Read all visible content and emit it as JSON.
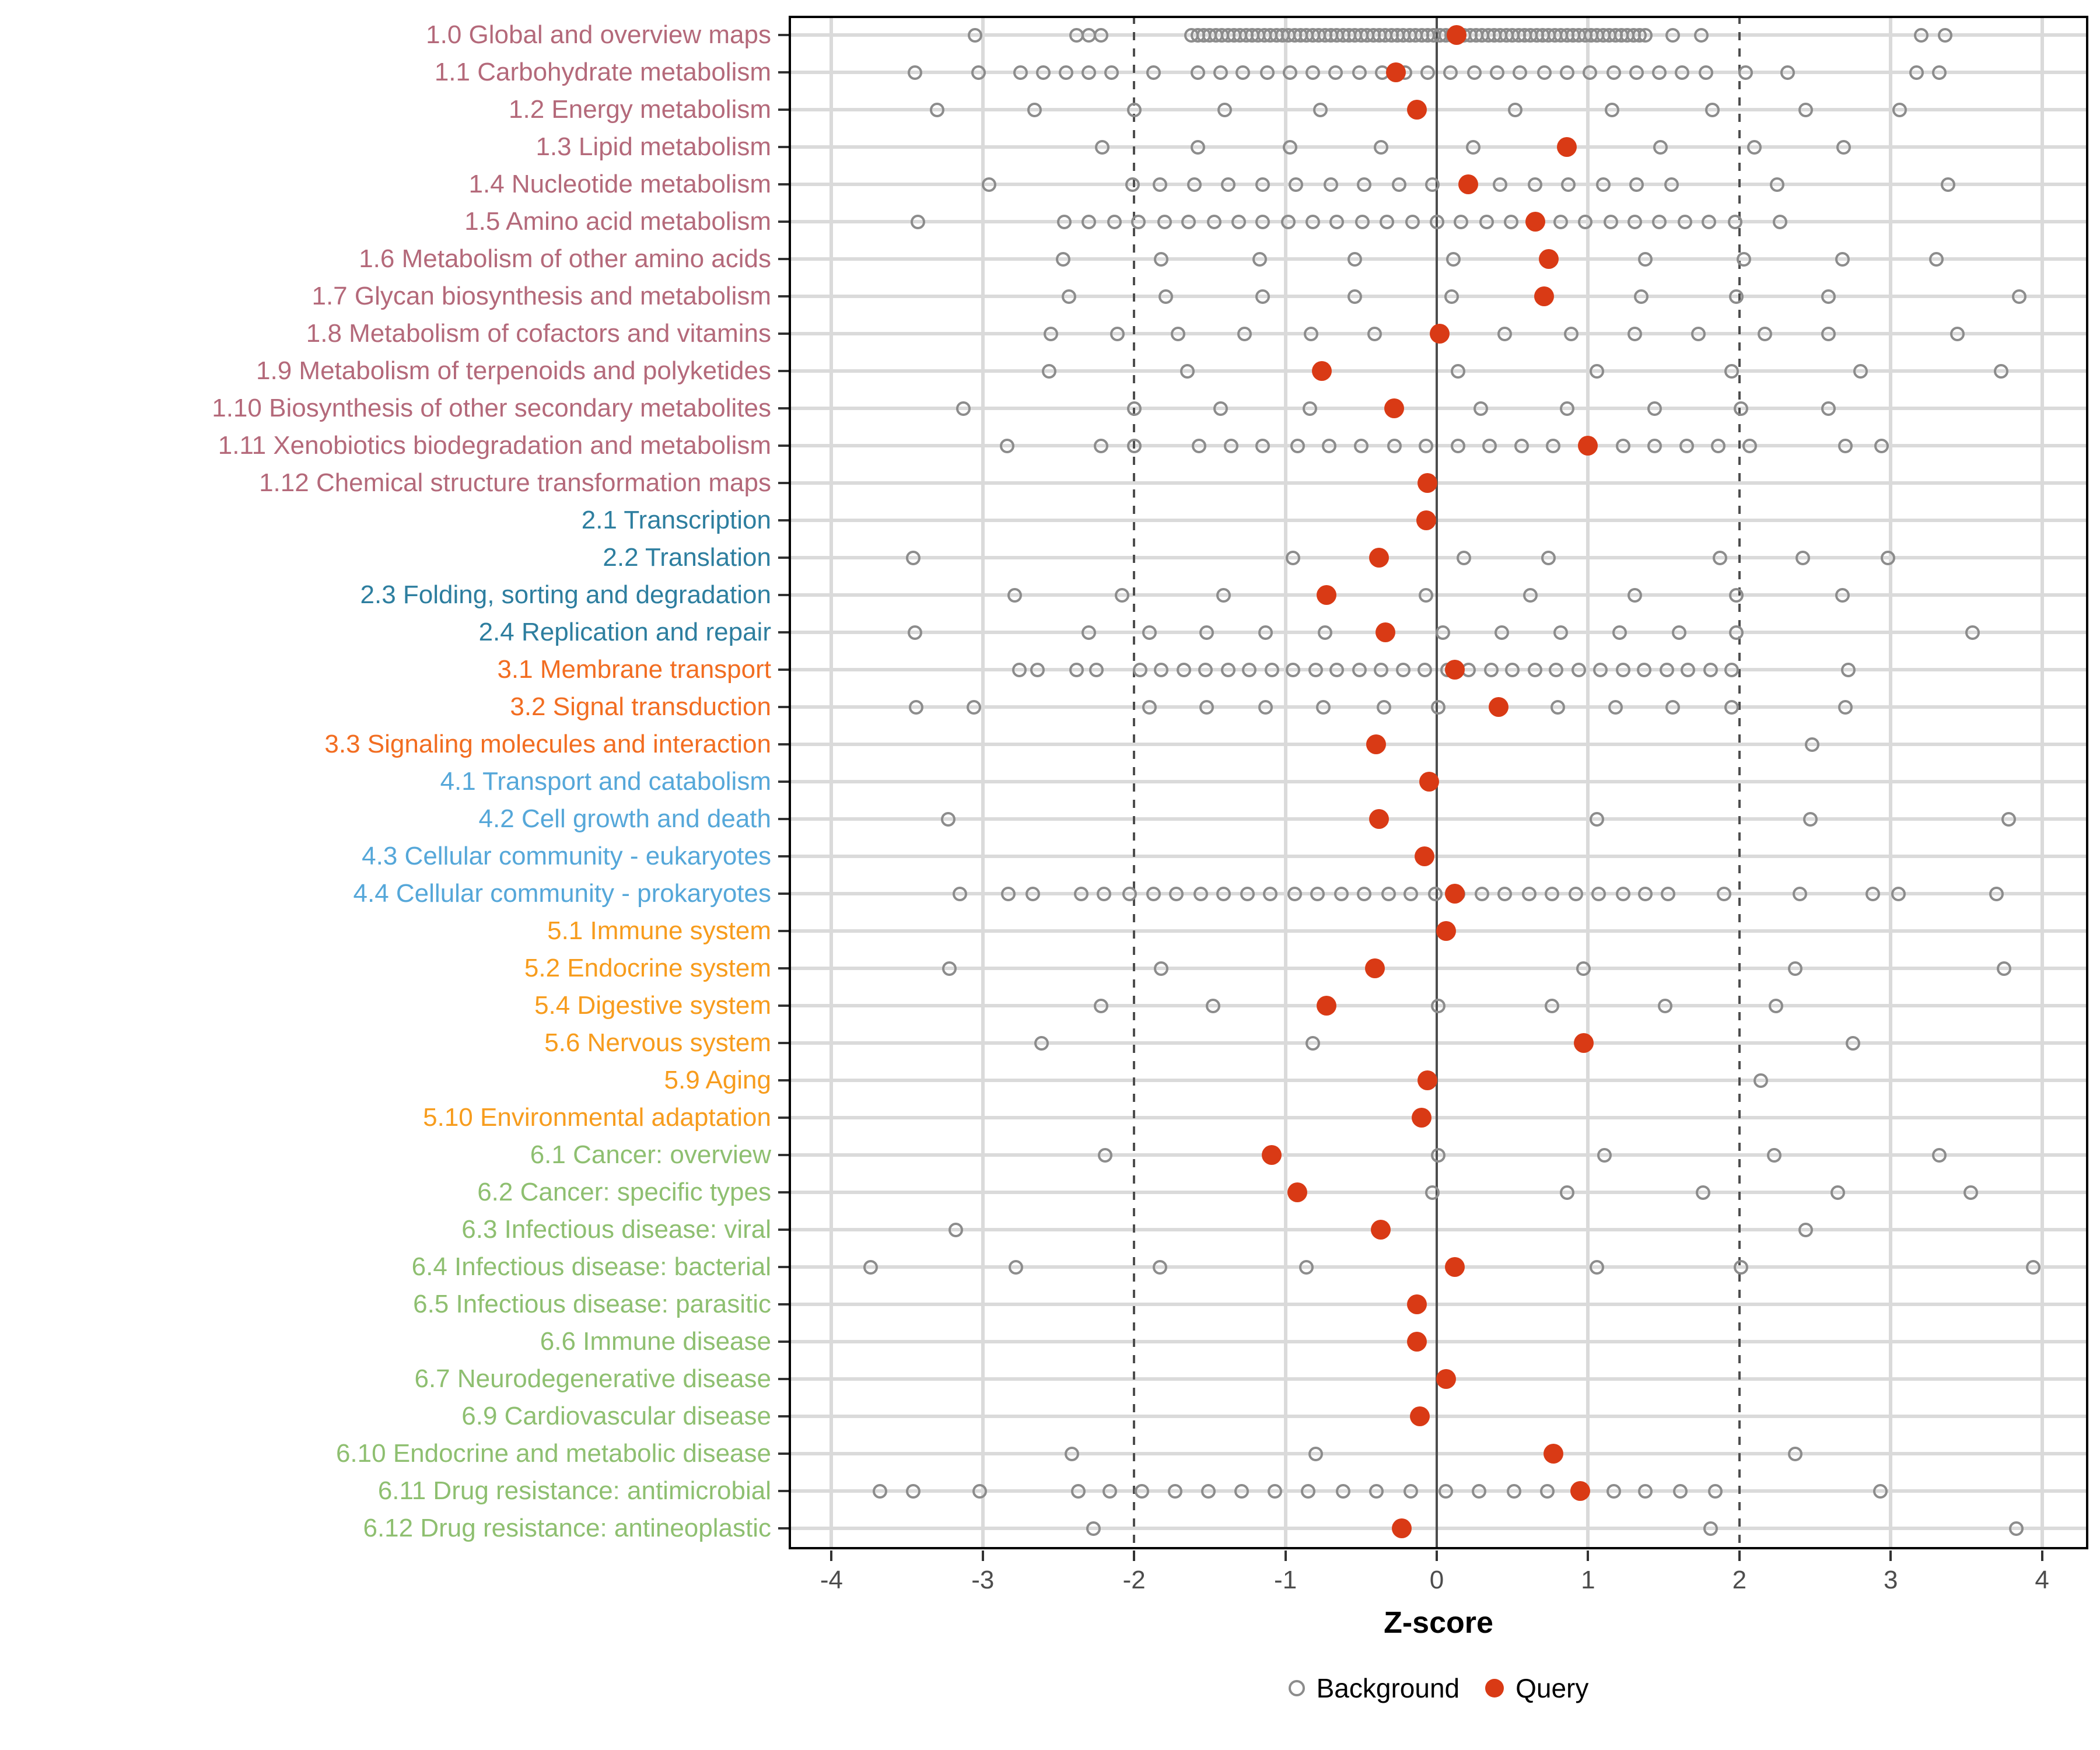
{
  "chart_data": {
    "type": "scatter",
    "title": "",
    "xlabel": "Z-score",
    "ylabel": "",
    "x_ticks": [
      -4,
      -3,
      -2,
      -1,
      0,
      1,
      2,
      3,
      4
    ],
    "x_range": [
      -4.28,
      4.31
    ],
    "grid": "on",
    "legend_position": "bottom",
    "reference_lines": {
      "solid_at": 0,
      "dashed_at": [
        -2,
        2
      ]
    },
    "legend": [
      {
        "label": "Background",
        "marker": "open-circle",
        "color": "#8c8c8c"
      },
      {
        "label": "Query",
        "marker": "filled-circle",
        "color": "#d93a15"
      }
    ],
    "colors": {
      "query": "#d93a15",
      "background_stroke": "#8c8c8c",
      "grid_light": "#dadada",
      "reference": "#4d4d4d",
      "tick": "#333333",
      "axis_text": "#4d4d4d",
      "group_metabolism": "#b4697a",
      "group_genetic": "#2d7e9f",
      "group_env_info": "#f26d21",
      "group_cellular": "#55a7d9",
      "group_organismal": "#f79c1d",
      "group_disease": "#8ebf70"
    },
    "rows": [
      {
        "label": "1.0 Global and overview maps",
        "group": "metabolism",
        "query": 0.13,
        "background": [
          -3.05,
          -2.38,
          -2.3,
          -2.22,
          -1.62,
          -1.58,
          -1.54,
          -1.5,
          -1.46,
          -1.42,
          -1.38,
          -1.34,
          -1.3,
          -1.26,
          -1.22,
          -1.18,
          -1.14,
          -1.1,
          -1.06,
          -1.02,
          -0.98,
          -0.94,
          -0.9,
          -0.86,
          -0.82,
          -0.78,
          -0.74,
          -0.7,
          -0.66,
          -0.62,
          -0.58,
          -0.54,
          -0.5,
          -0.46,
          -0.42,
          -0.38,
          -0.34,
          -0.3,
          -0.26,
          -0.22,
          -0.18,
          -0.14,
          -0.1,
          -0.06,
          -0.02,
          0.02,
          0.06,
          0.1,
          0.14,
          0.18,
          0.22,
          0.26,
          0.3,
          0.34,
          0.38,
          0.42,
          0.46,
          0.5,
          0.54,
          0.58,
          0.62,
          0.66,
          0.7,
          0.74,
          0.78,
          0.82,
          0.86,
          0.9,
          0.94,
          0.98,
          1.02,
          1.06,
          1.1,
          1.14,
          1.18,
          1.22,
          1.26,
          1.3,
          1.34,
          1.38,
          1.56,
          1.75,
          3.2,
          3.36
        ]
      },
      {
        "label": "1.1 Carbohydrate metabolism",
        "group": "metabolism",
        "query": -0.27,
        "background": [
          -3.45,
          -3.03,
          -2.75,
          -2.6,
          -2.45,
          -2.3,
          -2.15,
          -1.87,
          -1.58,
          -1.43,
          -1.28,
          -1.12,
          -0.97,
          -0.82,
          -0.67,
          -0.51,
          -0.36,
          -0.21,
          -0.06,
          0.09,
          0.25,
          0.4,
          0.55,
          0.71,
          0.86,
          1.01,
          1.17,
          1.32,
          1.47,
          1.62,
          1.78,
          2.04,
          2.32,
          3.17,
          3.32
        ]
      },
      {
        "label": "1.2 Energy metabolism",
        "group": "metabolism",
        "query": -0.13,
        "background": [
          -3.3,
          -2.66,
          -2.0,
          -1.4,
          -0.77,
          0.52,
          1.16,
          1.82,
          2.44,
          3.06
        ]
      },
      {
        "label": "1.3 Lipid metabolism",
        "group": "metabolism",
        "query": 0.86,
        "background": [
          -2.21,
          -1.58,
          -0.97,
          -0.37,
          0.24,
          1.48,
          2.1,
          2.69
        ]
      },
      {
        "label": "1.4 Nucleotide metabolism",
        "group": "metabolism",
        "query": 0.21,
        "background": [
          -2.96,
          -2.01,
          -1.83,
          -1.6,
          -1.38,
          -1.15,
          -0.93,
          -0.7,
          -0.48,
          -0.25,
          -0.03,
          0.42,
          0.65,
          0.87,
          1.1,
          1.32,
          1.55,
          2.25,
          3.38
        ]
      },
      {
        "label": "1.5 Amino acid metabolism",
        "group": "metabolism",
        "query": 0.65,
        "background": [
          -3.43,
          -2.46,
          -2.3,
          -2.13,
          -1.97,
          -1.8,
          -1.64,
          -1.47,
          -1.31,
          -1.15,
          -0.98,
          -0.82,
          -0.66,
          -0.49,
          -0.33,
          -0.16,
          0.0,
          0.16,
          0.33,
          0.49,
          0.66,
          0.82,
          0.98,
          1.15,
          1.31,
          1.47,
          1.64,
          1.8,
          1.97,
          2.27
        ]
      },
      {
        "label": "1.6 Metabolism of other amino acids",
        "group": "metabolism",
        "query": 0.74,
        "background": [
          -2.47,
          -1.82,
          -1.17,
          -0.54,
          0.11,
          1.38,
          2.03,
          2.68,
          3.3
        ]
      },
      {
        "label": "1.7 Glycan biosynthesis and metabolism",
        "group": "metabolism",
        "query": 0.71,
        "background": [
          -2.43,
          -1.79,
          -1.15,
          -0.54,
          0.1,
          1.35,
          1.98,
          2.59,
          3.85
        ]
      },
      {
        "label": "1.8 Metabolism of cofactors and vitamins",
        "group": "metabolism",
        "query": 0.02,
        "background": [
          -2.55,
          -2.11,
          -1.71,
          -1.27,
          -0.83,
          -0.41,
          0.45,
          0.89,
          1.31,
          1.73,
          2.17,
          2.59,
          3.44
        ]
      },
      {
        "label": "1.9 Metabolism of terpenoids and polyketides",
        "group": "metabolism",
        "query": -0.76,
        "background": [
          -2.56,
          -1.65,
          0.14,
          1.06,
          1.95,
          2.8,
          3.73
        ]
      },
      {
        "label": "1.10 Biosynthesis of other secondary metabolites",
        "group": "metabolism",
        "query": -0.28,
        "background": [
          -3.13,
          -2.0,
          -1.43,
          -0.84,
          0.29,
          0.86,
          1.44,
          2.01,
          2.59
        ]
      },
      {
        "label": "1.11 Xenobiotics biodegradation and metabolism",
        "group": "metabolism",
        "query": 1.0,
        "background": [
          -2.84,
          -2.22,
          -2.0,
          -1.57,
          -1.36,
          -1.15,
          -0.92,
          -0.71,
          -0.5,
          -0.28,
          -0.07,
          0.14,
          0.35,
          0.56,
          0.77,
          1.23,
          1.44,
          1.65,
          1.86,
          2.07,
          2.7,
          2.94
        ]
      },
      {
        "label": "1.12 Chemical structure transformation maps",
        "group": "metabolism",
        "query": -0.06,
        "background": []
      },
      {
        "label": "2.1 Transcription",
        "group": "genetic",
        "query": -0.07,
        "background": []
      },
      {
        "label": "2.2 Translation",
        "group": "genetic",
        "query": -0.38,
        "background": [
          -3.46,
          -0.95,
          0.18,
          0.74,
          1.87,
          2.42,
          2.98
        ]
      },
      {
        "label": "2.3 Folding, sorting and degradation",
        "group": "genetic",
        "query": -0.73,
        "background": [
          -2.79,
          -2.08,
          -1.41,
          -0.07,
          0.62,
          1.31,
          1.98,
          2.68
        ]
      },
      {
        "label": "2.4 Replication and repair",
        "group": "genetic",
        "query": -0.34,
        "background": [
          -3.45,
          -2.3,
          -1.9,
          -1.52,
          -1.13,
          -0.74,
          0.04,
          0.43,
          0.82,
          1.21,
          1.6,
          1.98,
          3.54
        ]
      },
      {
        "label": "3.1 Membrane transport",
        "group": "env_info",
        "query": 0.12,
        "background": [
          -2.76,
          -2.64,
          -2.38,
          -2.25,
          -1.96,
          -1.82,
          -1.67,
          -1.53,
          -1.38,
          -1.24,
          -1.09,
          -0.95,
          -0.8,
          -0.66,
          -0.51,
          -0.37,
          -0.22,
          -0.08,
          0.07,
          0.21,
          0.36,
          0.5,
          0.65,
          0.79,
          0.94,
          1.08,
          1.23,
          1.37,
          1.52,
          1.66,
          1.81,
          1.95,
          2.72
        ]
      },
      {
        "label": "3.2 Signal transduction",
        "group": "env_info",
        "query": 0.41,
        "background": [
          -3.44,
          -3.06,
          -1.9,
          -1.52,
          -1.13,
          -0.75,
          -0.35,
          0.01,
          0.8,
          1.18,
          1.56,
          1.95,
          2.7
        ]
      },
      {
        "label": "3.3 Signaling molecules and interaction",
        "group": "env_info",
        "query": -0.4,
        "background": [
          2.48
        ]
      },
      {
        "label": "4.1 Transport and catabolism",
        "group": "cellular",
        "query": -0.05,
        "background": []
      },
      {
        "label": "4.2 Cell growth and death",
        "group": "cellular",
        "query": -0.38,
        "background": [
          -3.23,
          1.06,
          2.47,
          3.78
        ]
      },
      {
        "label": "4.3 Cellular community - eukaryotes",
        "group": "cellular",
        "query": -0.08,
        "background": []
      },
      {
        "label": "4.4 Cellular community - prokaryotes",
        "group": "cellular",
        "query": 0.12,
        "background": [
          -3.15,
          -2.83,
          -2.67,
          -2.35,
          -2.2,
          -2.03,
          -1.87,
          -1.72,
          -1.56,
          -1.41,
          -1.25,
          -1.1,
          -0.94,
          -0.79,
          -0.63,
          -0.48,
          -0.32,
          -0.17,
          -0.01,
          0.14,
          0.3,
          0.45,
          0.61,
          0.76,
          0.92,
          1.07,
          1.23,
          1.38,
          1.53,
          1.9,
          2.4,
          2.88,
          3.05,
          3.7
        ]
      },
      {
        "label": "5.1 Immune system",
        "group": "organismal",
        "query": 0.06,
        "background": []
      },
      {
        "label": "5.2 Endocrine system",
        "group": "organismal",
        "query": -0.41,
        "background": [
          -3.22,
          -1.82,
          0.97,
          2.37,
          3.75
        ]
      },
      {
        "label": "5.4 Digestive system",
        "group": "organismal",
        "query": -0.73,
        "background": [
          -2.22,
          -1.48,
          0.01,
          0.76,
          1.51,
          2.24
        ]
      },
      {
        "label": "5.6 Nervous system",
        "group": "organismal",
        "query": 0.97,
        "background": [
          -2.61,
          -0.82,
          2.75
        ]
      },
      {
        "label": "5.9 Aging",
        "group": "organismal",
        "query": -0.06,
        "background": [
          2.14
        ]
      },
      {
        "label": "5.10 Environmental adaptation",
        "group": "organismal",
        "query": -0.1,
        "background": []
      },
      {
        "label": "6.1 Cancer: overview",
        "group": "disease",
        "query": -1.09,
        "background": [
          -2.19,
          0.01,
          1.11,
          2.23,
          3.32
        ]
      },
      {
        "label": "6.2 Cancer: specific types",
        "group": "disease",
        "query": -0.92,
        "background": [
          -0.03,
          0.86,
          1.76,
          2.65,
          3.53
        ]
      },
      {
        "label": "6.3 Infectious disease: viral",
        "group": "disease",
        "query": -0.37,
        "background": [
          -3.18,
          2.44
        ]
      },
      {
        "label": "6.4 Infectious disease: bacterial",
        "group": "disease",
        "query": 0.12,
        "background": [
          -3.74,
          -2.78,
          -1.83,
          -0.86,
          1.06,
          2.01,
          3.94
        ]
      },
      {
        "label": "6.5 Infectious disease: parasitic",
        "group": "disease",
        "query": -0.13,
        "background": []
      },
      {
        "label": "6.6 Immune disease",
        "group": "disease",
        "query": -0.13,
        "background": []
      },
      {
        "label": "6.7 Neurodegenerative disease",
        "group": "disease",
        "query": 0.06,
        "background": []
      },
      {
        "label": "6.9 Cardiovascular disease",
        "group": "disease",
        "query": -0.11,
        "background": []
      },
      {
        "label": "6.10 Endocrine and metabolic disease",
        "group": "disease",
        "query": 0.77,
        "background": [
          -2.41,
          -0.8,
          2.37
        ]
      },
      {
        "label": "6.11 Drug resistance: antimicrobial",
        "group": "disease",
        "query": 0.95,
        "background": [
          -3.68,
          -3.46,
          -3.02,
          -2.37,
          -2.16,
          -1.95,
          -1.73,
          -1.51,
          -1.29,
          -1.07,
          -0.85,
          -0.62,
          -0.4,
          -0.17,
          0.06,
          0.28,
          0.51,
          0.73,
          1.17,
          1.38,
          1.61,
          1.84,
          2.93
        ]
      },
      {
        "label": "6.12 Drug resistance: antineoplastic",
        "group": "disease",
        "query": -0.23,
        "background": [
          -2.27,
          1.81,
          3.83
        ]
      }
    ]
  }
}
